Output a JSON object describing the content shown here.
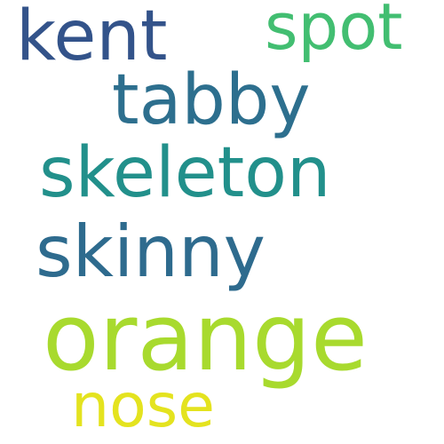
{
  "words": [
    {
      "id": "kent",
      "text": "kent",
      "color": "#33538a"
    },
    {
      "id": "spot",
      "text": "spot",
      "color": "#42be71"
    },
    {
      "id": "tabby",
      "text": "tabby",
      "color": "#2d6f8e"
    },
    {
      "id": "skeleton",
      "text": "skeleton",
      "color": "#22908b"
    },
    {
      "id": "skinny",
      "text": "skinny",
      "color": "#2e6b8e"
    },
    {
      "id": "orange",
      "text": "orange",
      "color": "#a8da2e"
    },
    {
      "id": "nose",
      "text": "nose",
      "color": "#e4e31f"
    }
  ]
}
